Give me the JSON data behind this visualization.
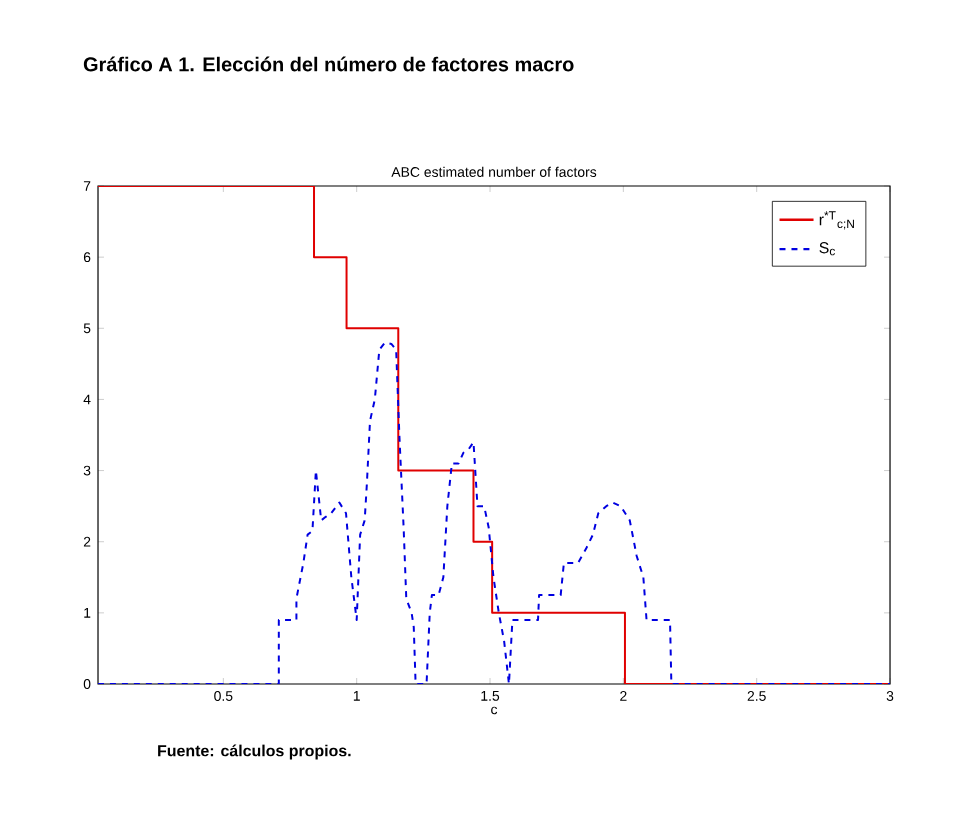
{
  "chart_data": {
    "type": "line",
    "title": "Gráfico A 1. Elección del número de factores macro",
    "subtitle": "ABC estimated number of factors",
    "xlabel": "c",
    "annotations": [
      "Fuente: cálculos propios."
    ],
    "xlim": [
      0.03,
      3
    ],
    "ylim": [
      0,
      7
    ],
    "xticks": [
      0.5,
      1,
      1.5,
      2,
      2.5,
      3
    ],
    "yticks": [
      0,
      1,
      2,
      3,
      4,
      5,
      6,
      7
    ],
    "grid": false,
    "legend": "top right",
    "series": [
      {
        "type": "step",
        "name": "r$^{*T}$$_{c;N}$",
        "color": "#e00000",
        "line_style": "solid",
        "x": [
          0.03,
          0.84,
          0.962,
          1.156,
          1.438,
          1.508,
          2.006,
          3
        ],
        "values": [
          7,
          6,
          5,
          3,
          2,
          1,
          0,
          0
        ]
      },
      {
        "name": "S$_{c}$",
        "color": "#0000e0",
        "line_style": "dashed",
        "x": [
          0.03,
          0.708,
          0.708,
          0.774,
          0.774,
          0.8,
          0.816,
          0.834,
          0.847,
          0.867,
          0.884,
          0.904,
          0.935,
          0.96,
          0.98,
          1.0,
          1.013,
          1.03,
          1.038,
          1.05,
          1.068,
          1.085,
          1.106,
          1.13,
          1.148,
          1.16,
          1.176,
          1.186,
          1.206,
          1.214,
          1.221,
          1.262,
          1.274,
          1.282,
          1.307,
          1.325,
          1.34,
          1.357,
          1.382,
          1.4,
          1.42,
          1.438,
          1.453,
          1.478,
          1.495,
          1.513,
          1.533,
          1.553,
          1.571,
          1.584,
          1.68,
          1.684,
          1.765,
          1.777,
          1.83,
          1.86,
          1.886,
          1.906,
          1.936,
          1.96,
          1.99,
          2.024,
          2.05,
          2.075,
          2.087,
          2.175,
          2.18,
          3
        ],
        "values": [
          0,
          0,
          0.9,
          0.9,
          1.2,
          1.7,
          2.1,
          2.15,
          3.0,
          2.3,
          2.35,
          2.4,
          2.55,
          2.4,
          1.5,
          0.9,
          2.1,
          2.3,
          2.8,
          3.7,
          4.0,
          4.7,
          4.8,
          4.78,
          4.7,
          3.5,
          2.2,
          1.2,
          1.0,
          0.8,
          0,
          0,
          1.0,
          1.25,
          1.25,
          1.5,
          2.5,
          3.1,
          3.1,
          3.25,
          3.3,
          3.4,
          2.5,
          2.5,
          2.2,
          1.5,
          1.0,
          0.6,
          0,
          0.9,
          0.9,
          1.25,
          1.25,
          1.7,
          1.7,
          1.9,
          2.1,
          2.4,
          2.5,
          2.55,
          2.5,
          2.3,
          1.8,
          1.5,
          0.9,
          0.9,
          0,
          0
        ]
      }
    ]
  }
}
